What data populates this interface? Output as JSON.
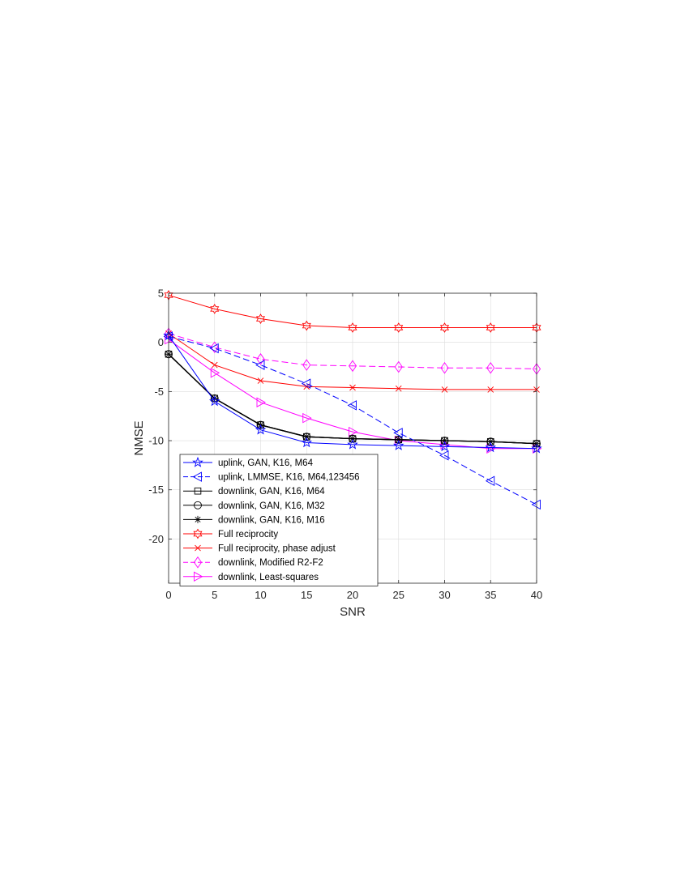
{
  "chart_data": {
    "type": "line",
    "title": "",
    "xlabel": "SNR",
    "ylabel": "NMSE",
    "xlim": [
      0,
      40
    ],
    "ylim": [
      -24.5,
      5
    ],
    "xticks": [
      0,
      5,
      10,
      15,
      20,
      25,
      30,
      35,
      40
    ],
    "yticks": [
      5,
      0,
      -5,
      -10,
      -15,
      -20
    ],
    "grid": true,
    "legend_position": "bottom-left",
    "x": [
      0,
      5,
      10,
      15,
      20,
      25,
      30,
      35,
      40
    ],
    "series": [
      {
        "name": "uplink, GAN, K16, M64",
        "color": "#0000ff",
        "dash": "solid",
        "marker": "star",
        "values": [
          0.7,
          -6.0,
          -8.9,
          -10.2,
          -10.4,
          -10.5,
          -10.6,
          -10.7,
          -10.8
        ]
      },
      {
        "name": "uplink, LMMSE, K16, M64,123456",
        "color": "#0000ff",
        "dash": "dashed",
        "marker": "triangle-left",
        "values": [
          0.6,
          -0.6,
          -2.3,
          -4.2,
          -6.4,
          -9.2,
          -11.5,
          -14.1,
          -16.5
        ]
      },
      {
        "name": "downlink, GAN, K16, M64",
        "color": "#000000",
        "dash": "solid",
        "marker": "square",
        "values": [
          -1.2,
          -5.7,
          -8.4,
          -9.6,
          -9.8,
          -9.9,
          -10.0,
          -10.1,
          -10.3
        ]
      },
      {
        "name": "downlink, GAN, K16, M32",
        "color": "#000000",
        "dash": "solid",
        "marker": "circle",
        "values": [
          -1.2,
          -5.7,
          -8.4,
          -9.6,
          -9.8,
          -9.9,
          -10.0,
          -10.1,
          -10.3
        ]
      },
      {
        "name": "downlink, GAN, K16, M16",
        "color": "#000000",
        "dash": "solid",
        "marker": "asterisk",
        "values": [
          -1.2,
          -5.7,
          -8.4,
          -9.6,
          -9.8,
          -9.9,
          -10.0,
          -10.1,
          -10.3
        ]
      },
      {
        "name": "Full reciprocity",
        "color": "#ff0000",
        "dash": "solid",
        "marker": "hexagram",
        "values": [
          4.8,
          3.4,
          2.4,
          1.7,
          1.5,
          1.5,
          1.5,
          1.5,
          1.5
        ]
      },
      {
        "name": "Full reciprocity, phase adjust",
        "color": "#ff0000",
        "dash": "solid",
        "marker": "x",
        "values": [
          0.9,
          -2.3,
          -3.9,
          -4.5,
          -4.6,
          -4.7,
          -4.8,
          -4.8,
          -4.8
        ]
      },
      {
        "name": "downlink, Modified R2-F2",
        "color": "#ff00ff",
        "dash": "dashed",
        "marker": "diamond",
        "values": [
          0.9,
          -0.5,
          -1.7,
          -2.3,
          -2.4,
          -2.5,
          -2.6,
          -2.6,
          -2.7
        ]
      },
      {
        "name": "downlink, Least-squares",
        "color": "#ff00ff",
        "dash": "solid",
        "marker": "triangle-right",
        "values": [
          0.3,
          -3.1,
          -6.1,
          -7.7,
          -9.1,
          -10.0,
          -10.4,
          -10.8,
          -10.8
        ]
      }
    ]
  }
}
